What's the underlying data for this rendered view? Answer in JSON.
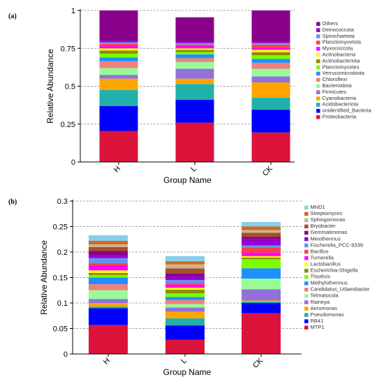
{
  "chart_data": [
    {
      "panel_label": "(a)",
      "type": "bar",
      "stacked": true,
      "xlabel": "Group Name",
      "ylabel": "Relative Abundance",
      "ylim": [
        0,
        1
      ],
      "yticks": [
        0,
        0.25,
        0.5,
        0.75,
        1
      ],
      "ytick_labels": [
        "0",
        "0.25",
        "0.5",
        "0.75",
        "1"
      ],
      "grid": true,
      "legend_position": "right",
      "categories": [
        "H",
        "L",
        "CK"
      ],
      "series": [
        {
          "name": "Proteobacteria",
          "color": "#DC143C",
          "values": [
            0.205,
            0.26,
            0.195
          ]
        },
        {
          "name": "unidentified_Bacteria",
          "color": "#0000FF",
          "values": [
            0.165,
            0.15,
            0.15
          ]
        },
        {
          "name": "Acidobacteriota",
          "color": "#20B2AA",
          "values": [
            0.105,
            0.105,
            0.08
          ]
        },
        {
          "name": "Cyanobacteria",
          "color": "#FFA500",
          "values": [
            0.075,
            0.035,
            0.1
          ]
        },
        {
          "name": "Firmicutes",
          "color": "#9370DB",
          "values": [
            0.025,
            0.065,
            0.04
          ]
        },
        {
          "name": "Bacteroidota",
          "color": "#98FB98",
          "values": [
            0.045,
            0.045,
            0.05
          ]
        },
        {
          "name": "Chloroflexi",
          "color": "#F08080",
          "values": [
            0.045,
            0.025,
            0.04
          ]
        },
        {
          "name": "Verrucomicrobiota",
          "color": "#1E90FF",
          "values": [
            0.025,
            0.025,
            0.025
          ]
        },
        {
          "name": "Planctomycetes",
          "color": "#7CFC00",
          "values": [
            0.025,
            0.015,
            0.025
          ]
        },
        {
          "name": "Actinobacteriota",
          "color": "#8B8B00",
          "values": [
            0.02,
            0.015,
            0.02
          ]
        },
        {
          "name": "Actinobacteria",
          "color": "#FFFF00",
          "values": [
            0.015,
            0.01,
            0.015
          ]
        },
        {
          "name": "Myxococcota",
          "color": "#FF00FF",
          "values": [
            0.015,
            0.015,
            0.015
          ]
        },
        {
          "name": "Planctomycetota",
          "color": "#FF4040",
          "values": [
            0.015,
            0.01,
            0.02
          ]
        },
        {
          "name": "Spirochaetota",
          "color": "#6495ED",
          "values": [
            0.01,
            0.01,
            0.01
          ]
        },
        {
          "name": "Deinococcota",
          "color": "#9400D3",
          "values": [
            0.01,
            0.01,
            0.01
          ]
        },
        {
          "name": "Others",
          "color": "#8B008B",
          "values": [
            0.2,
            0.16,
            0.205
          ]
        }
      ]
    },
    {
      "panel_label": "(b)",
      "type": "bar",
      "stacked": true,
      "xlabel": "Group Name",
      "ylabel": "Relative Abundance",
      "ylim": [
        0,
        0.3
      ],
      "yticks": [
        0,
        0.05,
        0.1,
        0.15,
        0.2,
        0.25,
        0.3
      ],
      "ytick_labels": [
        "0",
        "0.05",
        "0.1",
        "0.15",
        "0.2",
        "0.25",
        "0.3"
      ],
      "grid": true,
      "legend_position": "right",
      "categories": [
        "H",
        "L",
        "CK"
      ],
      "series": [
        {
          "name": "MTP1",
          "color": "#DC143C",
          "values": [
            0.057,
            0.028,
            0.08
          ]
        },
        {
          "name": "RB41",
          "color": "#0000FF",
          "values": [
            0.033,
            0.028,
            0.02
          ]
        },
        {
          "name": "Pseudomonas",
          "color": "#20B2AA",
          "values": [
            0.003,
            0.014,
            0.003
          ]
        },
        {
          "name": "Aeromonas",
          "color": "#FFA500",
          "values": [
            0.007,
            0.013,
            0.002
          ]
        },
        {
          "name": "Raineya",
          "color": "#9370DB",
          "values": [
            0.008,
            0.008,
            0.022
          ]
        },
        {
          "name": "Telmatocola",
          "color": "#98FB98",
          "values": [
            0.017,
            0.007,
            0.021
          ]
        },
        {
          "name": "Candidatus_Udaeobacter",
          "color": "#F08080",
          "values": [
            0.012,
            0.008,
            0.0
          ]
        },
        {
          "name": "Methylothermus",
          "color": "#1E90FF",
          "values": [
            0.013,
            0.006,
            0.02
          ]
        },
        {
          "name": "Thiothrix",
          "color": "#7CFC00",
          "values": [
            0.005,
            0.007,
            0.018
          ]
        },
        {
          "name": "Escherichia-Shigella",
          "color": "#8B8B00",
          "values": [
            0.004,
            0.007,
            0.003
          ]
        },
        {
          "name": "Lactobacillus",
          "color": "#FFFF00",
          "values": [
            0.005,
            0.004,
            0.003
          ]
        },
        {
          "name": "Turnerella",
          "color": "#FF00FF",
          "values": [
            0.01,
            0.006,
            0.007
          ]
        },
        {
          "name": "Bacillus",
          "color": "#FF4040",
          "values": [
            0.004,
            0.003,
            0.01
          ]
        },
        {
          "name": "Fischerella_PCC-9339",
          "color": "#6495ED",
          "values": [
            0.01,
            0.006,
            0.004
          ]
        },
        {
          "name": "Meiothermus",
          "color": "#9400D3",
          "values": [
            0.005,
            0.007,
            0.012
          ]
        },
        {
          "name": "Gemmatimonas",
          "color": "#8B008B",
          "values": [
            0.009,
            0.006,
            0.005
          ]
        },
        {
          "name": "Bryobacter",
          "color": "#A0522D",
          "values": [
            0.008,
            0.01,
            0.008
          ]
        },
        {
          "name": "Sphingomonas",
          "color": "#D2B48C",
          "values": [
            0.005,
            0.008,
            0.005
          ]
        },
        {
          "name": "Streptomyces",
          "color": "#D2691E",
          "values": [
            0.007,
            0.006,
            0.007
          ]
        },
        {
          "name": "MND1",
          "color": "#87CEEB",
          "values": [
            0.011,
            0.01,
            0.009
          ]
        }
      ]
    }
  ]
}
